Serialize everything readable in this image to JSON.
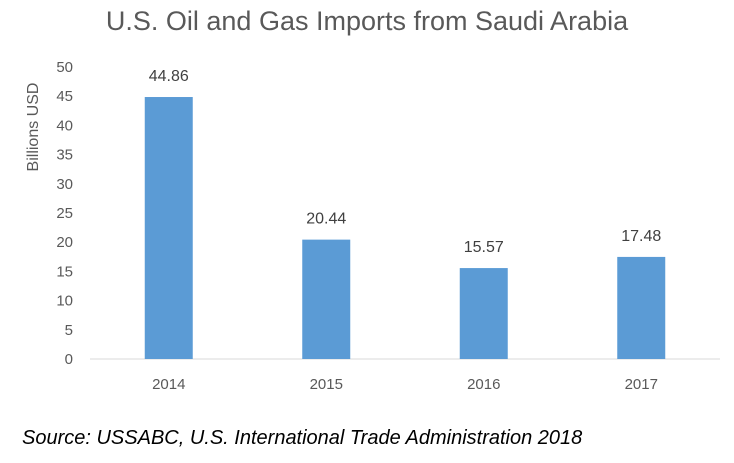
{
  "chart_data": {
    "type": "bar",
    "title": "U.S. Oil and Gas Imports from Saudi Arabia",
    "xlabel": "",
    "ylabel": "Billions USD",
    "categories": [
      "2014",
      "2015",
      "2016",
      "2017"
    ],
    "values": [
      44.86,
      20.44,
      15.57,
      17.48
    ],
    "data_labels": [
      "44.86",
      "20.44",
      "15.57",
      "17.48"
    ],
    "ylim": [
      0,
      50
    ],
    "yticks": [
      0,
      5,
      10,
      15,
      20,
      25,
      30,
      35,
      40,
      45,
      50
    ],
    "grid": false,
    "legend": "none",
    "bar_color": "#5B9BD5"
  },
  "source": "Source: USSABC, U.S. International Trade Administration 2018"
}
